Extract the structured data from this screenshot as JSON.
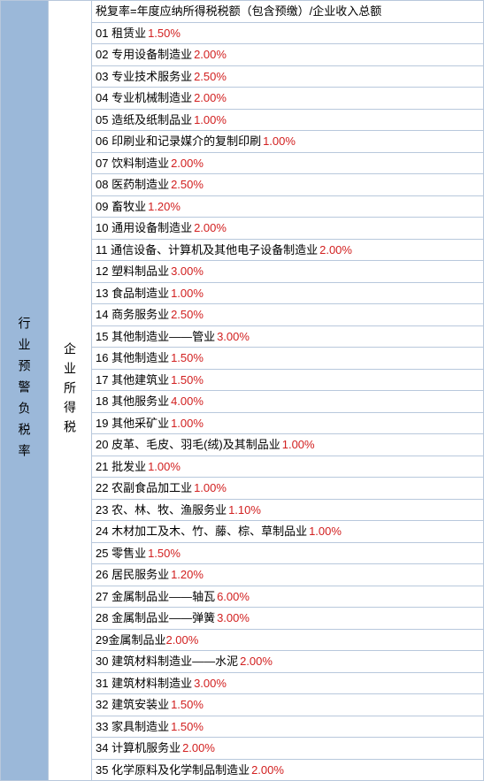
{
  "left_header": "行业预警负税率",
  "mid_header": "企业所得税",
  "formula": "税复率=年度应纳所得税税额（包含预缴）/企业收入总额",
  "border_color": "#b8c8dc",
  "left_bg_color": "#9bb8d9",
  "text_color": "#000000",
  "rate_color": "#d22020",
  "font_size": 13,
  "rows": [
    {
      "num": "01",
      "label": "租赁业",
      "rate": "1.50%"
    },
    {
      "num": "02",
      "label": "专用设备制造业",
      "rate": "2.00%"
    },
    {
      "num": "03",
      "label": "专业技术服务业",
      "rate": "2.50%"
    },
    {
      "num": "04",
      "label": "专业机械制造业",
      "rate": "2.00%"
    },
    {
      "num": "05",
      "label": "造纸及纸制品业",
      "rate": "1.00%"
    },
    {
      "num": "06",
      "label": "印刷业和记录媒介的复制印刷",
      "rate": "1.00%"
    },
    {
      "num": "07",
      "label": "饮料制造业",
      "rate": "2.00%"
    },
    {
      "num": "08",
      "label": "医药制造业",
      "rate": "2.50%"
    },
    {
      "num": "09",
      "label": "畜牧业",
      "rate": "1.20%"
    },
    {
      "num": "10",
      "label": "通用设备制造业",
      "rate": "2.00%"
    },
    {
      "num": "11",
      "label": "通信设备、计算机及其他电子设备制造业",
      "rate": "2.00%"
    },
    {
      "num": "12",
      "label": "塑料制品业",
      "rate": "3.00%"
    },
    {
      "num": "13",
      "label": "食品制造业",
      "rate": "1.00%"
    },
    {
      "num": "14",
      "label": "商务服务业",
      "rate": "2.50%"
    },
    {
      "num": "15",
      "label": "其他制造业——管业",
      "rate": "3.00%"
    },
    {
      "num": "16",
      "label": "其他制造业",
      "rate": "1.50%"
    },
    {
      "num": "17",
      "label": "其他建筑业",
      "rate": "1.50%"
    },
    {
      "num": "18",
      "label": "其他服务业",
      "rate": "4.00%"
    },
    {
      "num": "19",
      "label": "其他采矿业",
      "rate": "1.00%"
    },
    {
      "num": "20",
      "label": "皮革、毛皮、羽毛(绒)及其制品业",
      "rate": "1.00%"
    },
    {
      "num": "21",
      "label": "批发业",
      "rate": "1.00%"
    },
    {
      "num": "22",
      "label": "农副食品加工业",
      "rate": "1.00%"
    },
    {
      "num": "23",
      "label": "农、林、牧、渔服务业",
      "rate": "1.10%"
    },
    {
      "num": "24",
      "label": "木材加工及木、竹、藤、棕、草制品业",
      "rate": "1.00%"
    },
    {
      "num": "25",
      "label": "零售业",
      "rate": "1.50%"
    },
    {
      "num": "26",
      "label": "居民服务业",
      "rate": "1.20%"
    },
    {
      "num": "27",
      "label": "金属制品业——轴瓦",
      "rate": "6.00%"
    },
    {
      "num": "28",
      "label": "金属制品业——弹簧",
      "rate": "3.00%"
    },
    {
      "num": "29",
      "label": "金属制品业",
      "rate": "2.00%",
      "nospace": true
    },
    {
      "num": "30",
      "label": "建筑材料制造业——水泥",
      "rate": "2.00%"
    },
    {
      "num": "31",
      "label": "建筑材料制造业",
      "rate": "3.00%"
    },
    {
      "num": "32",
      "label": "建筑安装业",
      "rate": "1.50%"
    },
    {
      "num": "33",
      "label": "家具制造业",
      "rate": "1.50%"
    },
    {
      "num": "34",
      "label": "计算机服务业",
      "rate": "2.00%"
    },
    {
      "num": "35",
      "label": "化学原料及化学制品制造业",
      "rate": "2.00%"
    }
  ]
}
